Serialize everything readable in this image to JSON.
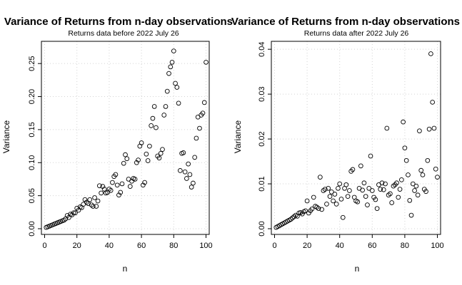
{
  "chart_data": [
    {
      "type": "scatter",
      "title": "Variance of Returns from n-day observations",
      "subtitle": "Returns data before 2022 July 26",
      "xlabel": "n",
      "ylabel": "Variance",
      "xlim": [
        0,
        100
      ],
      "ylim": [
        0,
        0.275
      ],
      "xticks": [
        0,
        20,
        40,
        60,
        80,
        100
      ],
      "yticks": [
        0.0,
        0.05,
        0.1,
        0.15,
        0.2,
        0.25
      ],
      "ytick_labels": [
        "0.00",
        "0.05",
        "0.10",
        "0.15",
        "0.20",
        "0.25"
      ],
      "grid": true,
      "series": [
        {
          "x": [
            1,
            2,
            3,
            4,
            5,
            6,
            7,
            8,
            9,
            10,
            11,
            12,
            13,
            14,
            15,
            16,
            17,
            18,
            19,
            20,
            21,
            22,
            23,
            24,
            25,
            26,
            27,
            28,
            29,
            30,
            31,
            32,
            33,
            34,
            35,
            36,
            37,
            38,
            39,
            40,
            41,
            42,
            43,
            44,
            45,
            46,
            47,
            48,
            49,
            50,
            51,
            52,
            53,
            54,
            55,
            56,
            57,
            58,
            59,
            60,
            61,
            62,
            63,
            64,
            65,
            66,
            67,
            68,
            69,
            70,
            71,
            72,
            73,
            74,
            75,
            76,
            77,
            78,
            79,
            80,
            81,
            82,
            83,
            84,
            85,
            86,
            87,
            88,
            89,
            90,
            91,
            92,
            93,
            94,
            95,
            96,
            97,
            98,
            99,
            100
          ],
          "y": [
            0.002,
            0.003,
            0.004,
            0.005,
            0.006,
            0.007,
            0.008,
            0.009,
            0.01,
            0.011,
            0.012,
            0.013,
            0.015,
            0.02,
            0.017,
            0.022,
            0.021,
            0.024,
            0.024,
            0.031,
            0.028,
            0.033,
            0.032,
            0.037,
            0.044,
            0.04,
            0.038,
            0.044,
            0.036,
            0.034,
            0.047,
            0.034,
            0.042,
            0.065,
            0.054,
            0.064,
            0.06,
            0.054,
            0.055,
            0.06,
            0.058,
            0.07,
            0.079,
            0.082,
            0.066,
            0.051,
            0.055,
            0.068,
            0.099,
            0.112,
            0.106,
            0.075,
            0.064,
            0.072,
            0.076,
            0.075,
            0.1,
            0.104,
            0.125,
            0.13,
            0.066,
            0.07,
            0.113,
            0.103,
            0.125,
            0.156,
            0.167,
            0.185,
            0.153,
            0.11,
            0.107,
            0.114,
            0.12,
            0.172,
            0.185,
            0.208,
            0.235,
            0.245,
            0.252,
            0.269,
            0.22,
            0.214,
            0.19,
            0.088,
            0.114,
            0.115,
            0.086,
            0.076,
            0.098,
            0.082,
            0.063,
            0.069,
            0.108,
            0.137,
            0.169,
            0.152,
            0.172,
            0.175,
            0.191,
            0.252
          ]
        }
      ]
    },
    {
      "type": "scatter",
      "title": "Variance of Returns from n-day observations",
      "subtitle": "Returns data after 2022 July 26",
      "xlabel": "n",
      "ylabel": "Variance",
      "xlim": [
        0,
        100
      ],
      "ylim": [
        0,
        0.0405
      ],
      "xticks": [
        0,
        20,
        40,
        60,
        80,
        100
      ],
      "yticks": [
        0.0,
        0.01,
        0.02,
        0.03,
        0.04
      ],
      "ytick_labels": [
        "0.00",
        "0.01",
        "0.02",
        "0.03",
        "0.04"
      ],
      "grid": true,
      "series": [
        {
          "x": [
            1,
            2,
            3,
            4,
            5,
            6,
            7,
            8,
            9,
            10,
            11,
            12,
            13,
            14,
            15,
            16,
            17,
            18,
            19,
            20,
            21,
            22,
            23,
            24,
            25,
            26,
            27,
            28,
            29,
            30,
            31,
            32,
            33,
            34,
            35,
            36,
            37,
            38,
            39,
            40,
            41,
            42,
            43,
            44,
            45,
            46,
            47,
            48,
            49,
            50,
            51,
            52,
            53,
            54,
            55,
            56,
            57,
            58,
            59,
            60,
            61,
            62,
            63,
            64,
            65,
            66,
            67,
            68,
            69,
            70,
            71,
            72,
            73,
            74,
            75,
            76,
            77,
            78,
            79,
            80,
            81,
            82,
            83,
            84,
            85,
            86,
            87,
            88,
            89,
            90,
            91,
            92,
            93,
            94,
            95,
            96,
            97,
            98,
            99,
            100
          ],
          "y": [
            0.0003,
            0.0005,
            0.0007,
            0.0009,
            0.0011,
            0.0013,
            0.0015,
            0.0017,
            0.0019,
            0.0021,
            0.0024,
            0.0027,
            0.003,
            0.0028,
            0.0035,
            0.0036,
            0.0033,
            0.0038,
            0.004,
            0.0062,
            0.0035,
            0.004,
            0.0044,
            0.007,
            0.005,
            0.0048,
            0.0045,
            0.0115,
            0.0043,
            0.0085,
            0.0088,
            0.0055,
            0.009,
            0.0072,
            0.0082,
            0.0062,
            0.0077,
            0.0055,
            0.009,
            0.01,
            0.0066,
            0.0025,
            0.009,
            0.0098,
            0.0072,
            0.0085,
            0.0128,
            0.0132,
            0.007,
            0.0062,
            0.006,
            0.009,
            0.014,
            0.0086,
            0.0102,
            0.0072,
            0.0053,
            0.009,
            0.0162,
            0.0085,
            0.007,
            0.0065,
            0.0045,
            0.0098,
            0.0088,
            0.0102,
            0.0087,
            0.01,
            0.0224,
            0.0075,
            0.0078,
            0.0058,
            0.0095,
            0.0098,
            0.0102,
            0.007,
            0.0088,
            0.0109,
            0.0238,
            0.018,
            0.0152,
            0.012,
            0.0063,
            0.003,
            0.01,
            0.0085,
            0.0095,
            0.0075,
            0.0218,
            0.013,
            0.012,
            0.0088,
            0.0083,
            0.0152,
            0.0222,
            0.039,
            0.0282,
            0.0224,
            0.0133,
            0.0115
          ]
        }
      ]
    }
  ]
}
